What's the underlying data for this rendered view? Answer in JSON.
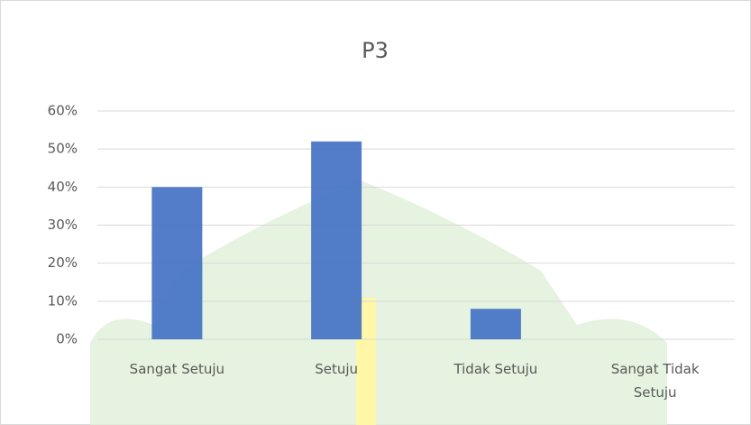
{
  "chart_data": {
    "type": "bar",
    "title": "P3",
    "categories": [
      "Sangat Setuju",
      "Setuju",
      "Tidak Setuju",
      "Sangat Tidak Setuju"
    ],
    "values": [
      40,
      52,
      8,
      0
    ],
    "color": "#4472c4",
    "ylim": [
      0,
      60
    ],
    "yticks": [
      {
        "value": 0,
        "label": "0%"
      },
      {
        "value": 10,
        "label": "10%"
      },
      {
        "value": 20,
        "label": "20%"
      },
      {
        "value": 30,
        "label": "30%"
      },
      {
        "value": 40,
        "label": "40%"
      },
      {
        "value": 50,
        "label": "50%"
      },
      {
        "value": 60,
        "label": "60%"
      }
    ],
    "grid": true
  }
}
